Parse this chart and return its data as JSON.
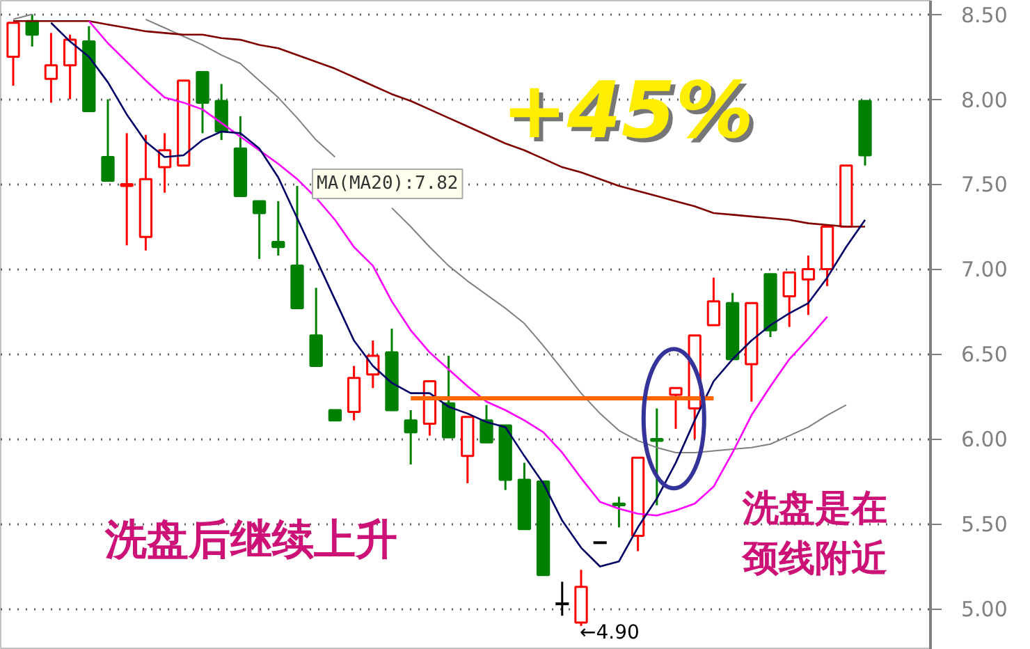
{
  "chart_data": {
    "type": "candlestick",
    "categories": [
      null,
      null,
      null,
      null,
      null,
      null,
      null,
      null,
      null,
      null,
      null,
      null,
      null,
      null,
      null,
      null,
      null,
      null,
      null,
      null,
      null,
      null,
      null,
      null,
      null,
      null,
      null,
      null,
      null,
      null,
      null,
      null,
      null,
      null,
      null,
      null,
      null,
      null,
      null,
      null,
      null,
      null,
      null,
      null,
      null,
      null
    ],
    "ohlc": [
      [
        8.25,
        8.45,
        8.08,
        8.45
      ],
      [
        8.46,
        8.5,
        8.31,
        8.38
      ],
      [
        8.12,
        8.39,
        7.98,
        8.2
      ],
      [
        8.2,
        8.38,
        8.0,
        8.35
      ],
      [
        8.34,
        8.43,
        7.93,
        7.93
      ],
      [
        7.66,
        8.0,
        7.52,
        7.52
      ],
      [
        7.49,
        7.8,
        7.14,
        7.5
      ],
      [
        7.19,
        7.79,
        7.11,
        7.53
      ],
      [
        7.6,
        7.8,
        7.45,
        7.7
      ],
      [
        7.61,
        8.11,
        7.61,
        8.11
      ],
      [
        8.16,
        8.16,
        7.8,
        7.98
      ],
      [
        7.99,
        8.09,
        7.76,
        7.81
      ],
      [
        7.71,
        7.9,
        7.43,
        7.43
      ],
      [
        7.4,
        7.4,
        7.06,
        7.33
      ],
      [
        7.16,
        7.4,
        7.08,
        7.13
      ],
      [
        7.02,
        7.49,
        6.77,
        6.77
      ],
      [
        6.61,
        6.89,
        6.43,
        6.43
      ],
      [
        6.17,
        6.17,
        6.11,
        6.11
      ],
      [
        6.16,
        6.43,
        6.11,
        6.36
      ],
      [
        6.38,
        6.58,
        6.3,
        6.49
      ],
      [
        6.51,
        6.65,
        6.17,
        6.17
      ],
      [
        6.11,
        6.17,
        5.85,
        6.04
      ],
      [
        6.09,
        6.34,
        6.02,
        6.34
      ],
      [
        6.21,
        6.49,
        6.01,
        6.01
      ],
      [
        5.9,
        6.13,
        5.74,
        6.13
      ],
      [
        6.11,
        6.2,
        5.98,
        5.98
      ],
      [
        6.08,
        6.08,
        5.7,
        5.76
      ],
      [
        5.76,
        5.86,
        5.47,
        5.47
      ],
      [
        5.75,
        5.75,
        5.2,
        5.2
      ],
      [
        5.03,
        5.16,
        4.96,
        5.03
      ],
      [
        4.92,
        5.23,
        4.9,
        5.13
      ],
      [
        5.39,
        5.39,
        5.39,
        5.39
      ],
      [
        5.62,
        5.66,
        5.48,
        5.61
      ],
      [
        5.43,
        5.89,
        5.34,
        5.89
      ],
      [
        6.0,
        6.18,
        5.61,
        5.99
      ],
      [
        6.26,
        6.3,
        6.06,
        6.3
      ],
      [
        6.18,
        6.61,
        6.0,
        6.61
      ],
      [
        6.67,
        6.95,
        6.67,
        6.81
      ],
      [
        6.8,
        6.86,
        6.47,
        6.47
      ],
      [
        6.44,
        6.8,
        6.22,
        6.8
      ],
      [
        6.97,
        6.97,
        6.6,
        6.64
      ],
      [
        6.84,
        6.98,
        6.66,
        6.98
      ],
      [
        6.94,
        7.08,
        6.73,
        7.0
      ],
      [
        7.0,
        7.25,
        6.9,
        7.25
      ],
      [
        7.25,
        7.61,
        7.25,
        7.61
      ],
      [
        7.99,
        7.99,
        7.61,
        7.67
      ]
    ],
    "colors": [
      "#ff0000",
      "#008000",
      "#ff0000",
      "#ff0000",
      "#008000",
      "#008000",
      "#ff0000",
      "#ff0000",
      "#ff0000",
      "#ff0000",
      "#008000",
      "#008000",
      "#008000",
      "#008000",
      "#008000",
      "#008000",
      "#008000",
      "#008000",
      "#ff0000",
      "#ff0000",
      "#008000",
      "#008000",
      "#ff0000",
      "#008000",
      "#ff0000",
      "#008000",
      "#008000",
      "#008000",
      "#008000",
      "#000000",
      "#ff0000",
      "#000000",
      "#008000",
      "#ff0000",
      "#008000",
      "#ff0000",
      "#ff0000",
      "#ff0000",
      "#008000",
      "#ff0000",
      "#008000",
      "#ff0000",
      "#ff0000",
      "#ff0000",
      "#ff0000",
      "#008000"
    ],
    "series": [
      {
        "type": "line",
        "color": "#808080",
        "values": [
          8.47,
          8.5,
          null,
          null,
          null,
          null,
          null,
          8.47,
          8.42,
          8.37,
          8.32,
          8.26,
          8.21,
          8.11,
          8.01,
          7.89,
          7.76,
          7.66,
          null,
          null,
          7.36,
          7.25,
          7.13,
          7.02,
          6.93,
          6.85,
          6.77,
          6.68,
          6.55,
          6.41,
          6.27,
          6.15,
          6.05,
          5.99,
          5.95,
          5.92,
          5.92,
          5.93,
          5.94,
          5.95,
          5.97,
          6.02,
          6.07,
          6.14,
          6.2,
          null
        ]
      },
      {
        "type": "line",
        "color": "#800000",
        "values": [
          8.46,
          8.46,
          8.46,
          8.46,
          8.46,
          8.44,
          8.42,
          8.4,
          8.39,
          8.38,
          8.38,
          8.36,
          8.35,
          8.32,
          8.3,
          8.26,
          8.22,
          8.18,
          8.13,
          8.08,
          8.03,
          7.99,
          7.94,
          7.89,
          7.84,
          7.79,
          7.74,
          7.7,
          7.65,
          7.6,
          7.57,
          7.53,
          7.49,
          7.46,
          7.43,
          7.4,
          7.37,
          7.33,
          7.32,
          7.31,
          7.3,
          7.29,
          7.27,
          7.26,
          7.25,
          7.25
        ]
      },
      {
        "type": "line",
        "color": "#ff00ff",
        "values": [
          null,
          null,
          null,
          null,
          8.46,
          8.33,
          8.22,
          8.11,
          8.01,
          7.98,
          7.94,
          7.86,
          7.78,
          7.7,
          7.62,
          7.53,
          7.42,
          7.29,
          7.13,
          7.02,
          6.81,
          6.64,
          6.51,
          6.41,
          6.31,
          6.22,
          6.17,
          6.11,
          6.04,
          5.92,
          5.77,
          5.63,
          5.59,
          5.56,
          5.55,
          5.58,
          5.62,
          5.72,
          5.92,
          6.14,
          6.31,
          6.47,
          6.59,
          6.72,
          null,
          null
        ]
      },
      {
        "type": "line",
        "color": "#000066",
        "values": [
          null,
          null,
          8.45,
          8.34,
          8.25,
          8.1,
          7.91,
          7.75,
          7.66,
          7.67,
          7.76,
          7.81,
          7.8,
          7.71,
          7.54,
          7.3,
          7.06,
          6.82,
          6.58,
          6.43,
          6.33,
          6.27,
          6.27,
          6.19,
          6.15,
          6.1,
          6.07,
          5.9,
          5.74,
          5.52,
          5.36,
          5.25,
          5.28,
          5.48,
          5.65,
          5.86,
          6.11,
          6.34,
          6.47,
          6.58,
          6.67,
          6.74,
          6.8,
          6.95,
          7.13,
          7.29
        ]
      },
      {
        "type": "line",
        "color": "#ff6600",
        "values": [
          null,
          null,
          null,
          null,
          null,
          null,
          null,
          null,
          null,
          null,
          null,
          null,
          null,
          null,
          null,
          null,
          null,
          null,
          null,
          null,
          null,
          6.24,
          6.24,
          6.24,
          6.24,
          6.24,
          6.24,
          6.24,
          6.24,
          6.24,
          6.24,
          6.24,
          6.24,
          6.24,
          6.24,
          6.24,
          6.24,
          6.24,
          null,
          null,
          null,
          null,
          null,
          null,
          null,
          null
        ]
      }
    ],
    "ylim": [
      4.76,
      8.58
    ],
    "yticks": [
      {
        "value": 5,
        "label": "5.00"
      },
      {
        "value": 5.5,
        "label": "5.50"
      },
      {
        "value": 6,
        "label": "6.00"
      },
      {
        "value": 6.5,
        "label": "6.50"
      },
      {
        "value": 7,
        "label": "7.00"
      },
      {
        "value": 7.5,
        "label": "7.50"
      },
      {
        "value": 8,
        "label": "8.00"
      },
      {
        "value": 8.5,
        "label": "8.50"
      }
    ],
    "grid": "y",
    "tick_labels": "y",
    "annotations": [
      "+45%",
      "洗盘后继续上升",
      "洗盘是在",
      "颈线附近",
      "MA(MA20):7.82",
      "←4.90"
    ]
  }
}
